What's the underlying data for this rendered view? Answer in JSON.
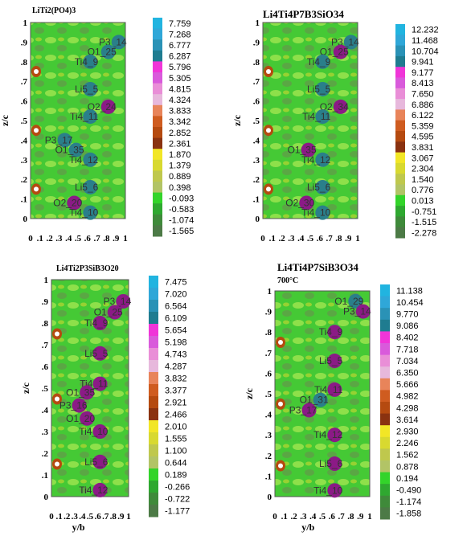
{
  "chart_data": [
    {
      "type": "heatmap",
      "title": "LiTi2(PO4)3",
      "subtitle": "",
      "xlabel": "",
      "ylabel": "z/c",
      "xticks": [
        "0",
        ".1",
        ".2",
        ".3",
        ".4",
        ".5",
        ".6",
        ".7",
        ".8",
        ".9",
        "1"
      ],
      "yticks": [
        "0",
        ".1",
        ".2",
        ".3",
        ".4",
        ".5",
        ".6",
        ".7",
        ".8",
        ".9",
        "1"
      ],
      "xlim": [
        0,
        1
      ],
      "ylim": [
        0,
        1
      ],
      "colorbar_levels": [
        "7.759",
        "7.268",
        "6.777",
        "6.287",
        "5.796",
        "5.305",
        "4.815",
        "4.324",
        "3.833",
        "3.342",
        "2.852",
        "2.361",
        "1.870",
        "1.379",
        "0.889",
        "0.398",
        "-0.093",
        "-0.583",
        "-1.074",
        "-1.565"
      ],
      "atoms": [
        {
          "label": "P3_14",
          "x": 0.93,
          "y": 0.9,
          "kind": "teal"
        },
        {
          "label": "O1_25",
          "x": 0.82,
          "y": 0.85,
          "kind": "teal"
        },
        {
          "label": "Ti4_9",
          "x": 0.63,
          "y": 0.8,
          "kind": "teal"
        },
        {
          "label": "Li5_5",
          "x": 0.63,
          "y": 0.66,
          "kind": "teal"
        },
        {
          "label": "O2_24",
          "x": 0.82,
          "y": 0.57,
          "kind": "purple"
        },
        {
          "label": "Ti4_11",
          "x": 0.63,
          "y": 0.52,
          "kind": "teal"
        },
        {
          "label": "P3_17",
          "x": 0.36,
          "y": 0.4,
          "kind": "teal"
        },
        {
          "label": "O1_35",
          "x": 0.48,
          "y": 0.35,
          "kind": "teal"
        },
        {
          "label": "Ti4_12",
          "x": 0.63,
          "y": 0.3,
          "kind": "teal"
        },
        {
          "label": "Li5_6",
          "x": 0.63,
          "y": 0.16,
          "kind": "teal"
        },
        {
          "label": "O2_20",
          "x": 0.46,
          "y": 0.08,
          "kind": "purple"
        },
        {
          "label": "Ti4_10",
          "x": 0.63,
          "y": 0.03,
          "kind": "teal"
        }
      ]
    },
    {
      "type": "heatmap",
      "title": "Li4Ti4P7B3SiO34",
      "subtitle": "",
      "xlabel": "",
      "ylabel": "z/c",
      "xticks": [
        "0",
        ".1",
        ".2",
        ".3",
        ".4",
        ".5",
        ".6",
        ".7",
        ".8",
        ".9",
        "1"
      ],
      "yticks": [
        "0",
        ".1",
        ".2",
        ".3",
        ".4",
        ".5",
        ".6",
        ".7",
        ".8",
        ".9",
        "1"
      ],
      "xlim": [
        0,
        1
      ],
      "ylim": [
        0,
        1
      ],
      "colorbar_levels": [
        "12.232",
        "11.468",
        "10.704",
        "9.941",
        "9.177",
        "8.413",
        "7.650",
        "6.886",
        "6.122",
        "5.359",
        "4.595",
        "3.831",
        "3.067",
        "2.304",
        "1.540",
        "0.776",
        "0.013",
        "-0.751",
        "-1.515",
        "-2.278"
      ],
      "atoms": [
        {
          "label": "P3_14",
          "x": 0.93,
          "y": 0.9,
          "kind": "teal"
        },
        {
          "label": "O1_25",
          "x": 0.82,
          "y": 0.85,
          "kind": "purple"
        },
        {
          "label": "Ti4_9",
          "x": 0.63,
          "y": 0.8,
          "kind": "teal"
        },
        {
          "label": "Li5_5",
          "x": 0.63,
          "y": 0.66,
          "kind": "teal"
        },
        {
          "label": "O2_34",
          "x": 0.82,
          "y": 0.57,
          "kind": "purple"
        },
        {
          "label": "Ti4_11",
          "x": 0.63,
          "y": 0.52,
          "kind": "teal"
        },
        {
          "label": "O1_35",
          "x": 0.48,
          "y": 0.35,
          "kind": "purple"
        },
        {
          "label": "Ti4_12",
          "x": 0.63,
          "y": 0.3,
          "kind": "teal"
        },
        {
          "label": "Li5_6",
          "x": 0.63,
          "y": 0.16,
          "kind": "teal"
        },
        {
          "label": "O2_30",
          "x": 0.46,
          "y": 0.08,
          "kind": "purple"
        },
        {
          "label": "Ti4_10",
          "x": 0.63,
          "y": 0.03,
          "kind": "teal"
        }
      ]
    },
    {
      "type": "heatmap",
      "title": "Li4Ti2P3SiB3O20",
      "subtitle": "",
      "xlabel": "y/b",
      "ylabel": "z/c",
      "xticks": [
        "0",
        ".1",
        ".2",
        ".3",
        ".4",
        ".5",
        ".6",
        ".7",
        ".8",
        ".9",
        "1"
      ],
      "yticks": [
        "0",
        ".1",
        ".2",
        ".3",
        ".4",
        ".5",
        ".6",
        ".7",
        ".8",
        ".9",
        "1"
      ],
      "xlim": [
        0,
        1
      ],
      "ylim": [
        0,
        1
      ],
      "colorbar_levels": [
        "7.475",
        "7.020",
        "6.564",
        "6.109",
        "5.654",
        "5.198",
        "4.743",
        "4.287",
        "3.832",
        "3.377",
        "2.921",
        "2.466",
        "2.010",
        "1.555",
        "1.100",
        "0.644",
        "0.189",
        "-0.266",
        "-0.722",
        "-1.177"
      ],
      "atoms": [
        {
          "label": "P3_14",
          "x": 0.93,
          "y": 0.9,
          "kind": "purple"
        },
        {
          "label": "O1_25",
          "x": 0.82,
          "y": 0.85,
          "kind": "purple"
        },
        {
          "label": "Ti4_9",
          "x": 0.63,
          "y": 0.8,
          "kind": "purple"
        },
        {
          "label": "Li5_5",
          "x": 0.63,
          "y": 0.66,
          "kind": "purple"
        },
        {
          "label": "Ti4_11",
          "x": 0.63,
          "y": 0.52,
          "kind": "purple"
        },
        {
          "label": "P3_16",
          "x": 0.36,
          "y": 0.42,
          "kind": "purple"
        },
        {
          "label": "O1_35",
          "x": 0.46,
          "y": 0.48,
          "kind": "purple"
        },
        {
          "label": "Ti4_10",
          "x": 0.63,
          "y": 0.3,
          "kind": "purple"
        },
        {
          "label": "Li5_6",
          "x": 0.63,
          "y": 0.16,
          "kind": "purple"
        },
        {
          "label": "Ti4_12",
          "x": 0.63,
          "y": 0.03,
          "kind": "purple"
        },
        {
          "label": "O1_20",
          "x": 0.46,
          "y": 0.36,
          "kind": "purple"
        }
      ]
    },
    {
      "type": "heatmap",
      "title": "Li4Ti4P7SiB3O34",
      "subtitle": "700°C",
      "xlabel": "y/b",
      "ylabel": "z/c",
      "xticks": [
        "0",
        ".1",
        ".2",
        ".3",
        ".4",
        ".5",
        ".6",
        ".7",
        ".8",
        ".9",
        "1"
      ],
      "yticks": [
        "0",
        ".1",
        ".2",
        ".3",
        ".4",
        ".5",
        ".6",
        ".7",
        ".8",
        ".9",
        "1"
      ],
      "xlim": [
        0,
        1
      ],
      "ylim": [
        0,
        1
      ],
      "colorbar_levels": [
        "11.138",
        "10.454",
        "9.770",
        "9.086",
        "8.402",
        "7.718",
        "7.034",
        "6.350",
        "5.666",
        "4.982",
        "4.298",
        "3.614",
        "2.930",
        "2.246",
        "1.562",
        "0.878",
        "0.194",
        "-0.490",
        "-1.174",
        "-1.858"
      ],
      "atoms": [
        {
          "label": "O1_29",
          "x": 0.85,
          "y": 0.95,
          "kind": "teal"
        },
        {
          "label": "P3_14",
          "x": 0.93,
          "y": 0.9,
          "kind": "purple"
        },
        {
          "label": "Ti4_9",
          "x": 0.63,
          "y": 0.8,
          "kind": "purple"
        },
        {
          "label": "Li5_5",
          "x": 0.63,
          "y": 0.66,
          "kind": "purple"
        },
        {
          "label": "Ti4_11",
          "x": 0.63,
          "y": 0.52,
          "kind": "purple"
        },
        {
          "label": "O1_31",
          "x": 0.48,
          "y": 0.47,
          "kind": "teal"
        },
        {
          "label": "P3_17",
          "x": 0.36,
          "y": 0.42,
          "kind": "purple"
        },
        {
          "label": "Ti4_12",
          "x": 0.63,
          "y": 0.3,
          "kind": "purple"
        },
        {
          "label": "Li5_6",
          "x": 0.63,
          "y": 0.16,
          "kind": "purple"
        },
        {
          "label": "Ti4_10",
          "x": 0.63,
          "y": 0.03,
          "kind": "purple"
        }
      ]
    }
  ],
  "palette": {
    "cbar": [
      "#21b4e0",
      "#2fa7d8",
      "#2a92b6",
      "#1f7c90",
      "#f035d8",
      "#d95adb",
      "#e98ed7",
      "#e7b8dc",
      "#e8845a",
      "#cf5c20",
      "#b54a10",
      "#8a3210",
      "#f2e626",
      "#d8d930",
      "#bfc84d",
      "#b2c466",
      "#33d42a",
      "#2fa830",
      "#3f8a3a",
      "#4c7a46"
    ],
    "field_bg": "#45c935",
    "field_light": "#8ee04a",
    "field_dark": "#6c8a50",
    "teal_atom": "#2a7f8a",
    "purple_atom": "#8b1a86"
  }
}
